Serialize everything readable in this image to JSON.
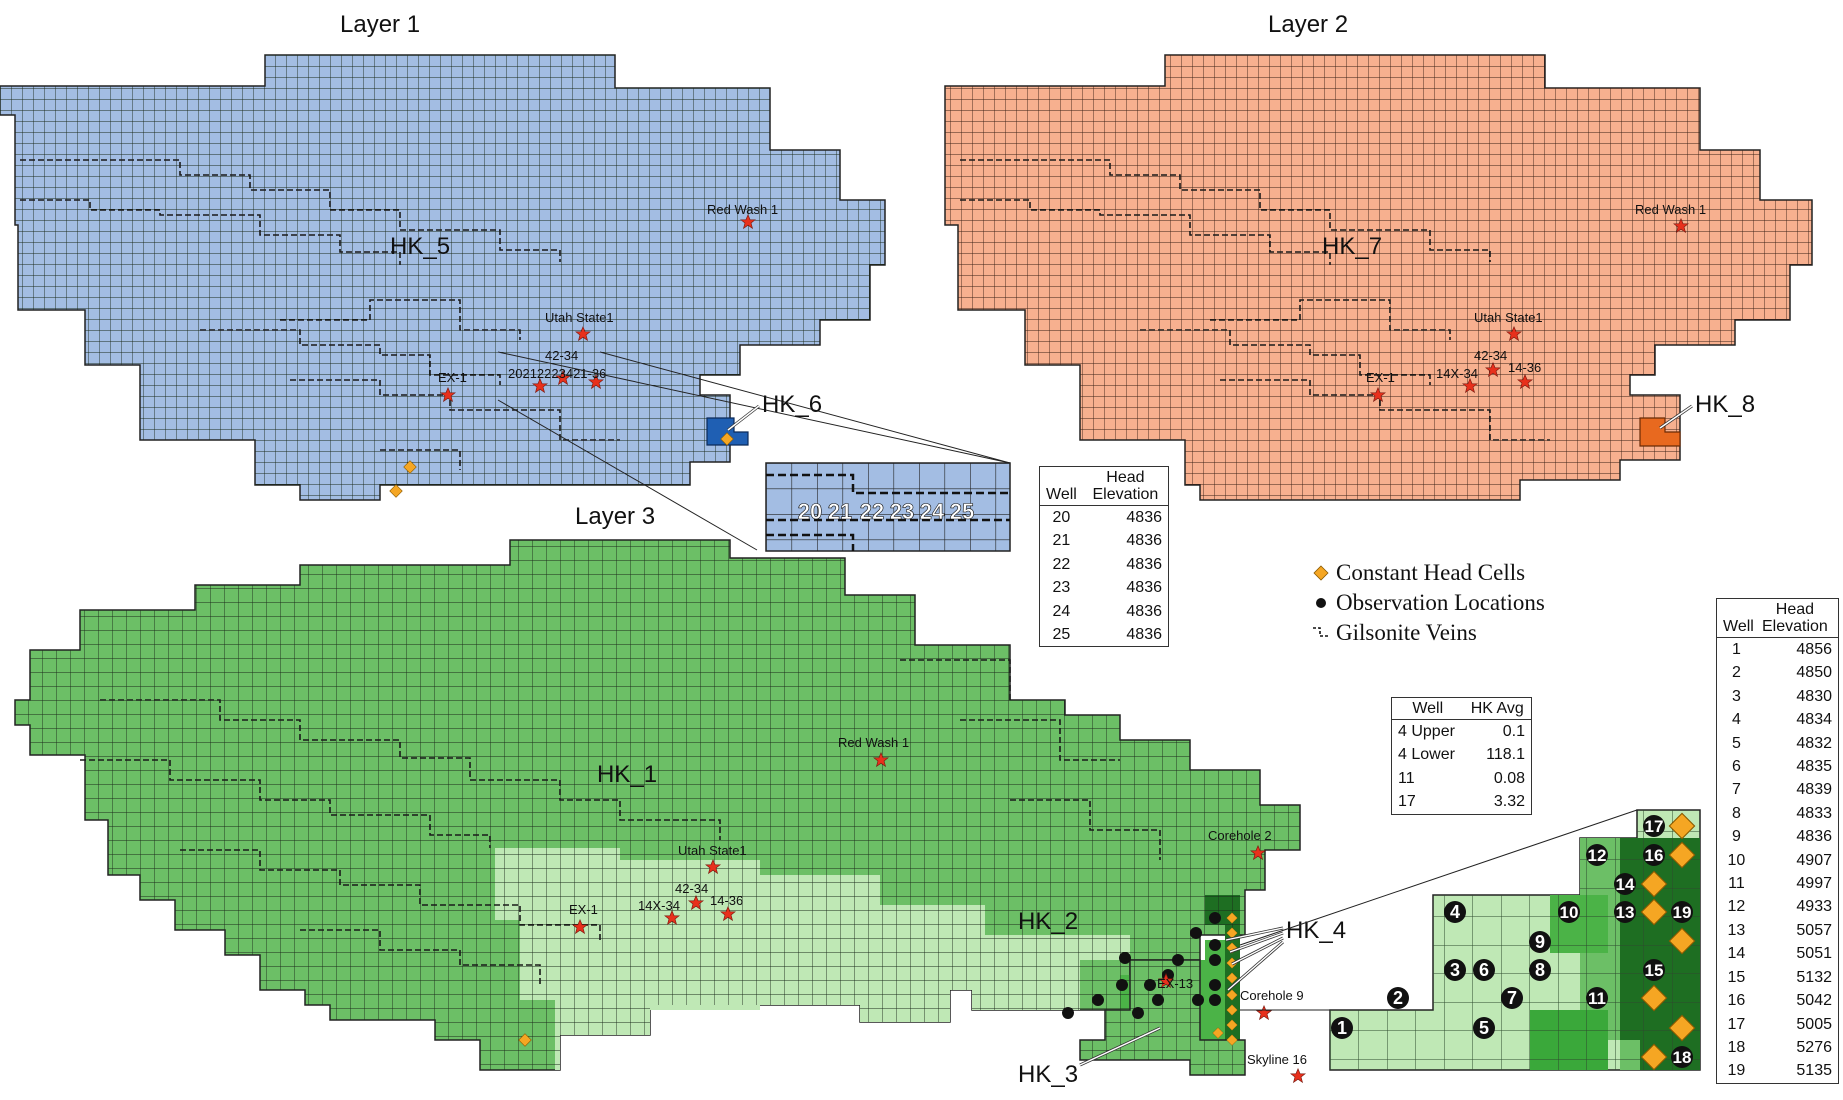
{
  "layers": [
    {
      "title": "Layer 1",
      "zone": "HK_5"
    },
    {
      "title": "Layer 2",
      "zone": "HK_7"
    },
    {
      "title": "Layer 3",
      "zones": [
        "HK_1",
        "HK_2"
      ]
    }
  ],
  "callouts": {
    "hk6": "HK_6",
    "hk8": "HK_8",
    "hk4": "HK_4",
    "hk3": "HK_3"
  },
  "wells": {
    "red_wash": "Red Wash 1",
    "utah_state": "Utah State1",
    "w42_34": "42-34",
    "w14x_34": "14X-34",
    "w14_36": "14-36",
    "ex1": "EX-1",
    "corehole2": "Corehole 2",
    "corehole9": "Corehole 9",
    "skyline16": "Skyline 16",
    "l1_cluster": "20212223421-36",
    "ex13": "EX-13"
  },
  "inset1_numbers": [
    "20",
    "21",
    "22",
    "23",
    "24",
    "25"
  ],
  "inset3_numbers": [
    "1",
    "2",
    "3",
    "4",
    "5",
    "6",
    "7",
    "8",
    "9",
    "10",
    "11",
    "12",
    "13",
    "14",
    "15",
    "16",
    "17",
    "18",
    "19"
  ],
  "legend": {
    "constant_head": "Constant Head Cells",
    "observation": "Observation Locations",
    "gilsonite": "Gilsonite Veins"
  },
  "colors": {
    "layer1_fill": "#a3bde3",
    "layer1_hk6": "#1f5fb3",
    "layer2_fill": "#f7b08f",
    "layer2_hk8": "#e8691f",
    "layer3_hk1": "#6cbf66",
    "layer3_hk2": "#bfe8b5",
    "layer3_hk3": "#3aa83a",
    "layer3_hk4": "#1e6e22",
    "constant_head": "#f5a623",
    "well_star": "#e8301c"
  },
  "table_upper": {
    "headers": [
      "Well",
      "Head Elevation"
    ],
    "rows": [
      [
        "20",
        "4836"
      ],
      [
        "21",
        "4836"
      ],
      [
        "22",
        "4836"
      ],
      [
        "23",
        "4836"
      ],
      [
        "24",
        "4836"
      ],
      [
        "25",
        "4836"
      ]
    ]
  },
  "table_hk": {
    "headers": [
      "Well",
      "HK Avg"
    ],
    "rows": [
      [
        "4 Upper",
        "0.1"
      ],
      [
        "4 Lower",
        "118.1"
      ],
      [
        "11",
        "0.08"
      ],
      [
        "17",
        "3.32"
      ]
    ]
  },
  "table_right": {
    "headers": [
      "Well",
      "Head Elevation"
    ],
    "rows": [
      [
        "1",
        "4856"
      ],
      [
        "2",
        "4850"
      ],
      [
        "3",
        "4830"
      ],
      [
        "4",
        "4834"
      ],
      [
        "5",
        "4832"
      ],
      [
        "6",
        "4835"
      ],
      [
        "7",
        "4839"
      ],
      [
        "8",
        "4833"
      ],
      [
        "9",
        "4836"
      ],
      [
        "10",
        "4907"
      ],
      [
        "11",
        "4997"
      ],
      [
        "12",
        "4933"
      ],
      [
        "13",
        "5057"
      ],
      [
        "14",
        "5051"
      ],
      [
        "15",
        "5132"
      ],
      [
        "16",
        "5042"
      ],
      [
        "17",
        "5005"
      ],
      [
        "18",
        "5276"
      ],
      [
        "19",
        "5135"
      ]
    ]
  }
}
